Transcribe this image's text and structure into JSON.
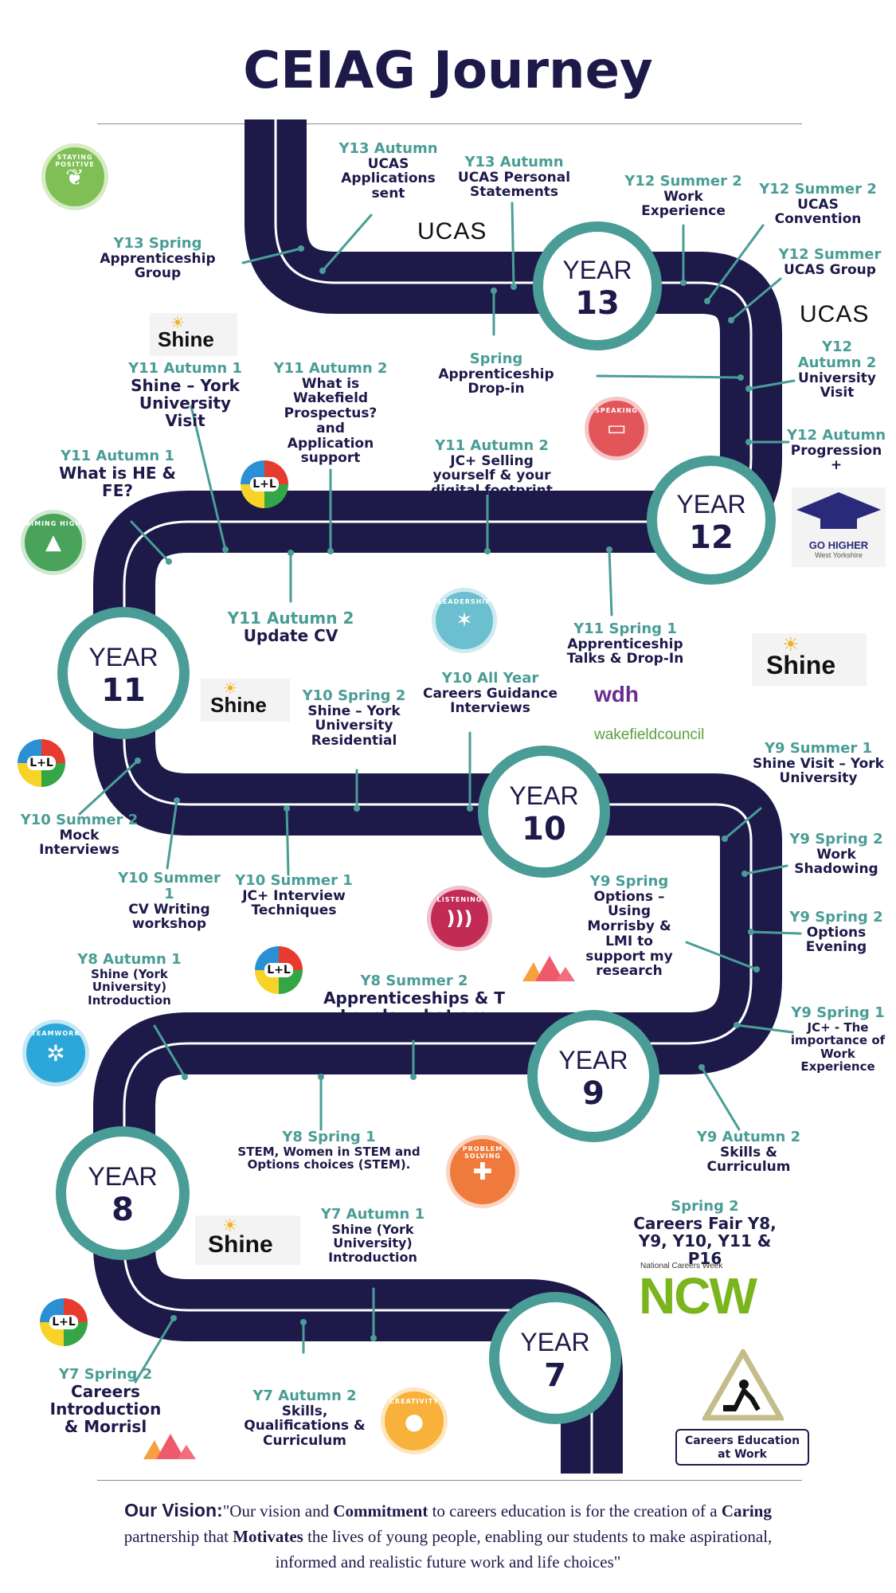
{
  "title": "CEIAG Journey",
  "years": [
    {
      "id": "13",
      "word": "YEAR",
      "num": "13"
    },
    {
      "id": "12",
      "word": "YEAR",
      "num": "12"
    },
    {
      "id": "11",
      "word": "YEAR",
      "num": "11"
    },
    {
      "id": "10",
      "word": "YEAR",
      "num": "10"
    },
    {
      "id": "9",
      "word": "YEAR",
      "num": "9"
    },
    {
      "id": "8",
      "word": "YEAR",
      "num": "8"
    },
    {
      "id": "7",
      "word": "YEAR",
      "num": "7"
    }
  ],
  "milestones": {
    "y13_autumn_ucas": {
      "heading": "Y13 Autumn",
      "text": "UCAS Applications sent"
    },
    "y13_autumn_ps": {
      "heading": "Y13 Autumn",
      "text": "UCAS Personal Statements"
    },
    "y13_spring_appr": {
      "heading": "Y13 Spring",
      "text": "Apprenticeship Group"
    },
    "spring_dropin": {
      "heading": "Spring",
      "text": "Apprenticeship Drop-in"
    },
    "y12_summer2_we": {
      "heading": "Y12 Summer 2",
      "text": "Work Experience"
    },
    "y12_summer2_conv": {
      "heading": "Y12 Summer 2",
      "text": "UCAS Convention"
    },
    "y12_summer_group": {
      "heading": "Y12 Summer",
      "text": "UCAS Group"
    },
    "y12_autumn2_visit": {
      "heading": "Y12 Autumn 2",
      "text": "University Visit"
    },
    "y12_autumn_prog": {
      "heading": "Y12 Autumn",
      "text": "Progression +"
    },
    "y11_autumn1_shine": {
      "heading": "Y11 Autumn 1",
      "text": "Shine – York University Visit"
    },
    "y11_autumn2_prospectus": {
      "heading": "Y11 Autumn 2",
      "text": "What is Wakefield Prospectus? and Application support"
    },
    "y11_autumn2_jc": {
      "heading": "Y11 Autumn 2",
      "text": "JC+ Selling yourself & your digital footprint"
    },
    "y11_autumn1_he": {
      "heading": "Y11 Autumn 1",
      "text": "What is HE & FE?"
    },
    "y11_autumn2_cv": {
      "heading": "Y11 Autumn 2",
      "text": "Update CV"
    },
    "y11_spring1_appr": {
      "heading": "Y11 Spring 1",
      "text": "Apprenticeship Talks & Drop-In"
    },
    "y10_spring2_shine": {
      "heading": "Y10 Spring 2",
      "text": "Shine – York University Residential"
    },
    "y10_allyear": {
      "heading": "Y10 All Year",
      "text": "Careers Guidance Interviews"
    },
    "y10_summer2_mock": {
      "heading": "Y10 Summer 2",
      "text": "Mock Interviews"
    },
    "y10_summer1_cv": {
      "heading": "Y10 Summer 1",
      "text": "CV Writing workshop"
    },
    "y10_summer1_jc": {
      "heading": "Y10 Summer 1",
      "text": "JC+ Interview Techniques"
    },
    "y9_summer1_shine": {
      "heading": "Y9 Summer 1",
      "text": "Shine Visit – York University"
    },
    "y9_spring2_shadow": {
      "heading": "Y9 Spring 2",
      "text": "Work Shadowing"
    },
    "y9_spring_options": {
      "heading": "Y9 Spring",
      "text": "Options – Using Morrisby & LMI to support my research"
    },
    "y9_spring2_evening": {
      "heading": "Y9 Spring 2",
      "text": "Options Evening"
    },
    "y9_spring1_jc": {
      "heading": "Y9 Spring 1",
      "text": "JC+ - The importance of Work Experience"
    },
    "y9_autumn2_skills": {
      "heading": "Y9 Autumn 2",
      "text": "Skills & Curriculum"
    },
    "y8_autumn1_shine": {
      "heading": "Y8 Autumn 1",
      "text": "Shine (York University) Introduction"
    },
    "y8_summer2_appr": {
      "heading": "Y8 Summer 2",
      "text": "Apprenticeships & T Levels, what are they?"
    },
    "y8_spring1_stem": {
      "heading": "Y8 Spring 1",
      "text": "STEM, Women in STEM and Options choices (STEM)."
    },
    "spring2_fair": {
      "heading": "Spring 2",
      "text": "Careers Fair Y8, Y9, Y10, Y11 & P16"
    },
    "y7_autumn1_shine": {
      "heading": "Y7 Autumn 1",
      "text": "Shine (York University) Introduction"
    },
    "y7_spring2_intro": {
      "heading": "Y7 Spring 2",
      "text": "Careers Introduction & Morrisl"
    },
    "y7_autumn2_skills": {
      "heading": "Y7 Autumn 2",
      "text": "Skills, Qualifications & Curriculum"
    }
  },
  "badges": {
    "staying_positive": "STAYING POSITIVE",
    "aiming_high": "AIMING HIGH",
    "speaking": "SPEAKING",
    "leadership": "LEADERSHIP",
    "listening": "LISTENING",
    "teamwork": "TEAMWORK",
    "problem_solving": "PROBLEM SOLVING",
    "creativity": "CREATIVITY"
  },
  "logos": {
    "ucas": "UCAS",
    "shine": "Shine",
    "go_higher": "GO HIGHER",
    "go_higher_sub": "West Yorkshire",
    "wdh": "wdh",
    "wakefield": "wakefieldcouncil",
    "ncw_small": "National Careers Week",
    "ncw": "NCW",
    "ll": "L+L"
  },
  "careers_education_at_work": "Careers Education at Work",
  "vision": {
    "heading": "Our Vision:",
    "p1": "\"Our vision and ",
    "w1": "Commitment",
    "p2": " to careers education is for the creation of a ",
    "w2": "Caring",
    "p3": " partnership that ",
    "w3": "Motivates",
    "p4": " the lives of young people, enabling our students to make aspirational, informed and realistic future work and life choices\""
  },
  "colors": {
    "navy": "#1d1a4a",
    "teal": "#4a9d96"
  }
}
